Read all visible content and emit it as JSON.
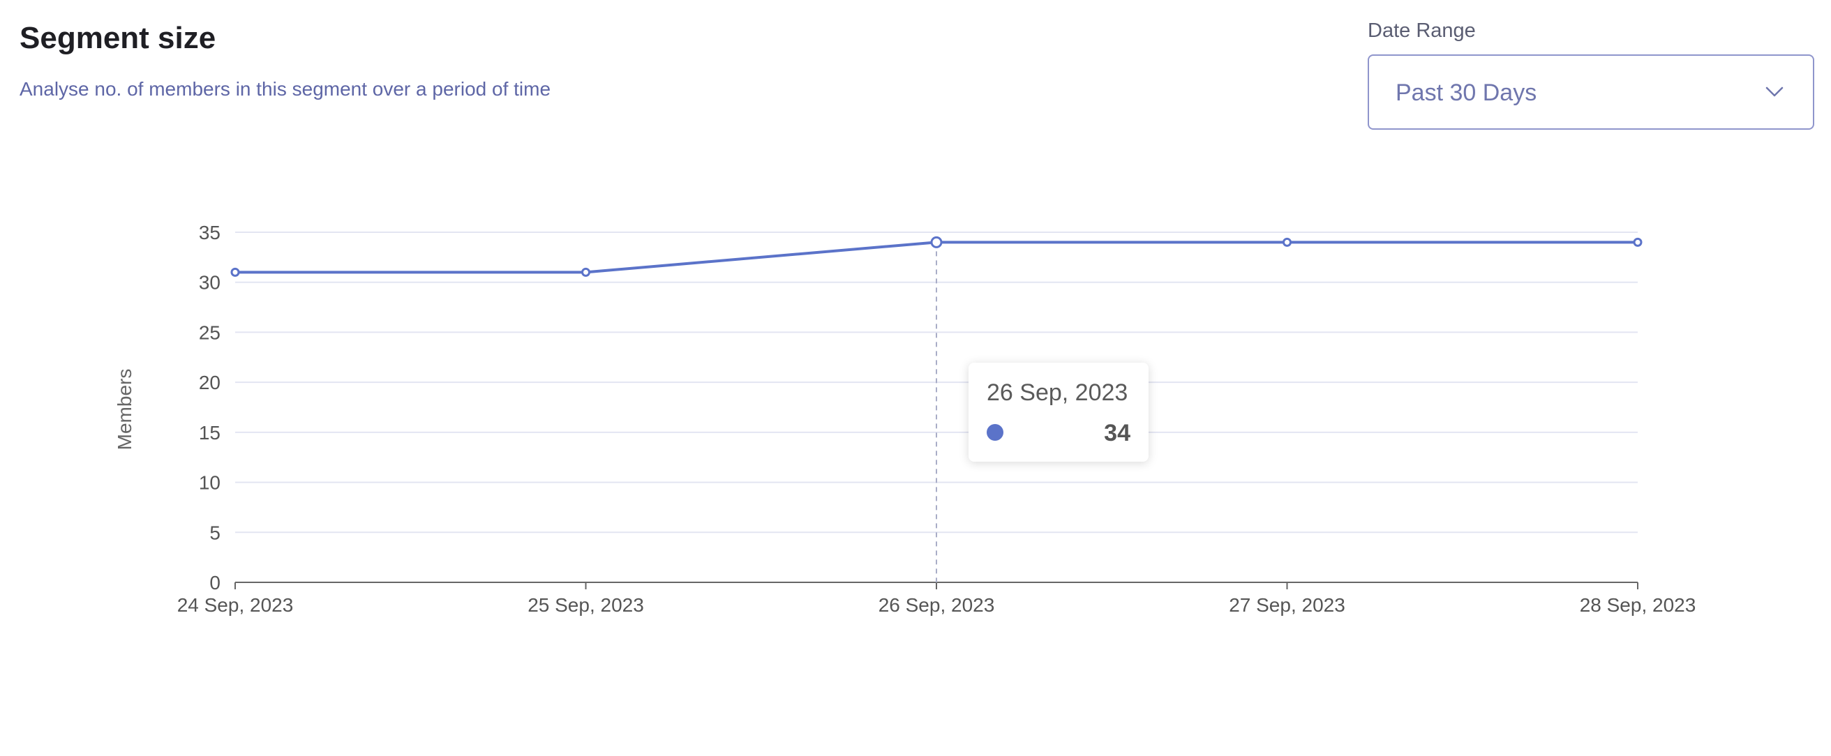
{
  "header": {
    "title": "Segment size",
    "subtitle": "Analyse no. of members in this segment over a period of time"
  },
  "date_range": {
    "label": "Date Range",
    "selected": "Past 30 Days",
    "icon": "chevron-down-icon"
  },
  "tooltip": {
    "date": "26 Sep, 2023",
    "value": "34"
  },
  "colors": {
    "line": "#5b73c9",
    "grid": "#e3e5f2",
    "axis": "#666666",
    "accent": "#8f95cc"
  },
  "chart_data": {
    "type": "line",
    "x": [
      "24 Sep, 2023",
      "25 Sep, 2023",
      "26 Sep, 2023",
      "27 Sep, 2023",
      "28 Sep, 2023"
    ],
    "series": [
      {
        "values": [
          31,
          31,
          34,
          34,
          34
        ]
      }
    ],
    "ylabel": "Members",
    "ylim": [
      0,
      35
    ],
    "yticks": [
      0,
      5,
      10,
      15,
      20,
      25,
      30,
      35
    ],
    "grid": true,
    "highlighted_index": 2
  }
}
